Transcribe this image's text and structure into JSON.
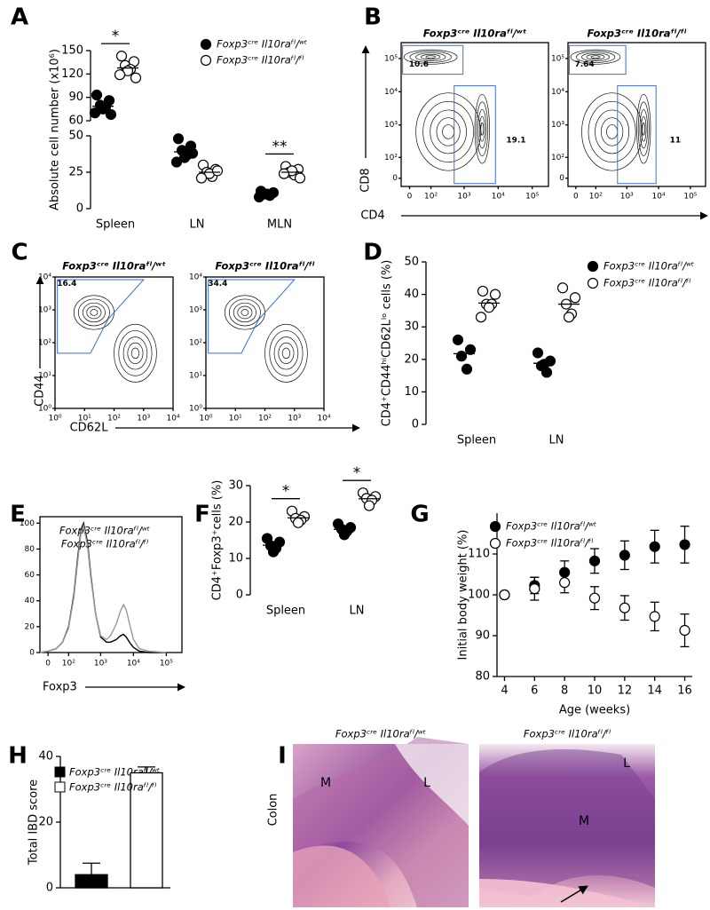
{
  "panel_labels": [
    "A",
    "B",
    "C",
    "D",
    "E",
    "F",
    "G",
    "H",
    "I"
  ],
  "chart_data": [
    {
      "type": "dot",
      "ylabel": "Absolute cell number (x10⁶)",
      "categories": [
        "Spleen",
        "LN",
        "MLN"
      ],
      "ylim": [
        0,
        150
      ],
      "ybreak": [
        50,
        60
      ],
      "yticks": [
        0,
        25,
        50,
        60,
        90,
        120,
        150
      ],
      "series": [
        {
          "name": "Foxp3ᶜʳᵉ Il10raᶠˡ/ʷᵗ",
          "color": "#000000",
          "values": [
            [
              93,
              86,
              80,
              78,
              75,
              70,
              68
            ],
            [
              48,
              43,
              40,
              37,
              35,
              32,
              38
            ],
            [
              12,
              11,
              10,
              9,
              10,
              8
            ]
          ]
        },
        {
          "name": "Foxp3ᶜʳᵉ Il10raᶠˡ/ᶠˡ",
          "color": "#ffffff",
          "values": [
            [
              143,
              136,
              131,
              126,
              124,
              119,
              115
            ],
            [
              30,
              27,
              25,
              22,
              24,
              21,
              26
            ],
            [
              29,
              27,
              25,
              23,
              26,
              24,
              21
            ]
          ]
        }
      ],
      "annotations": [
        "*",
        "**"
      ]
    },
    {
      "type": "contour",
      "xlabel": "CD4",
      "ylabel": "CD8",
      "xlim": [
        -30,
        300000
      ],
      "ylim": [
        -30,
        300000
      ],
      "xticks": [
        0,
        {
          "value": 100,
          "label": "10²"
        },
        {
          "value": 1000,
          "label": "10³"
        },
        {
          "value": 10000,
          "label": "10⁴"
        },
        {
          "value": 100000,
          "label": "10⁵"
        }
      ],
      "yticks": [
        0,
        {
          "value": 100,
          "label": "10²"
        },
        {
          "value": 1000,
          "label": "10³"
        },
        {
          "value": 10000,
          "label": "10⁴"
        },
        {
          "value": 100000,
          "label": "10⁵"
        }
      ],
      "plots": [
        {
          "title": "Foxp3ᶜʳᵉ Il10raᶠˡ/ʷᵗ",
          "gates": [
            10.6,
            19.1
          ]
        },
        {
          "title": "Foxp3ᶜʳᵉ Il10raᶠˡ/ᶠˡ",
          "gates": [
            7.64,
            11
          ]
        }
      ]
    },
    {
      "type": "contour",
      "xlabel": "CD62L",
      "ylabel": "CD44",
      "log": true,
      "xlim": [
        1,
        10000
      ],
      "ylim": [
        1,
        10000
      ],
      "xticks": [
        {
          "value": 1,
          "label": "10⁰"
        },
        {
          "value": 10,
          "label": "10¹"
        },
        {
          "value": 100,
          "label": "10²"
        },
        {
          "value": 1000,
          "label": "10³"
        },
        {
          "value": 10000,
          "label": "10⁴"
        }
      ],
      "yticks": [
        {
          "value": 1,
          "label": "10⁰"
        },
        {
          "value": 10,
          "label": "10¹"
        },
        {
          "value": 100,
          "label": "10²"
        },
        {
          "value": 1000,
          "label": "10³"
        },
        {
          "value": 10000,
          "label": "10⁴"
        }
      ],
      "plots": [
        {
          "title": "Foxp3ᶜʳᵉ Il10raᶠˡ/ʷᵗ",
          "gates": [
            16.4
          ]
        },
        {
          "title": "Foxp3ᶜʳᵉ Il10raᶠˡ/ᶠˡ",
          "gates": [
            34.4
          ]
        }
      ]
    },
    {
      "type": "dot",
      "ylabel": "CD4⁺CD44ʰⁱCD62Lˡᵒ cells (%)",
      "categories": [
        "Spleen",
        "LN"
      ],
      "ylim": [
        0,
        50
      ],
      "yticks": [
        0,
        10,
        20,
        30,
        40,
        50
      ],
      "series": [
        {
          "name": "Foxp3ᶜʳᵉ Il10raᶠˡ/ʷᵗ",
          "color": "#000000",
          "values": [
            [
              26,
              23,
              21,
              17
            ],
            [
              22,
              19.5,
              18,
              16,
              18.5
            ]
          ]
        },
        {
          "name": "Foxp3ᶜʳᵉ Il10raᶠˡ/ᶠˡ",
          "color": "#ffffff",
          "values": [
            [
              41,
              40,
              37,
              37,
              36,
              33
            ],
            [
              42,
              39,
              37,
              34,
              33
            ]
          ]
        }
      ]
    },
    {
      "type": "line",
      "xlabel": "Foxp3",
      "xlim": [
        -30,
        300000
      ],
      "ylim": [
        0,
        105
      ],
      "xticks": [
        0,
        {
          "value": 100,
          "label": "10²"
        },
        {
          "value": 1000,
          "label": "10³"
        },
        {
          "value": 10000,
          "label": "10⁴"
        },
        {
          "value": 100000,
          "label": "10⁵"
        }
      ],
      "yticks": [
        0,
        20,
        40,
        60,
        80,
        100
      ],
      "x": [
        -30,
        0,
        30,
        60,
        100,
        150,
        200,
        250,
        300,
        400,
        500,
        700,
        1000,
        1500,
        2000,
        3000,
        4000,
        5000,
        6000,
        8000,
        10000,
        15000,
        30000,
        100000
      ],
      "series": [
        {
          "name": "Foxp3ᶜʳᵉ Il10raᶠˡ/ʷᵗ",
          "color": "#000000",
          "values": [
            0,
            1,
            3,
            8,
            20,
            45,
            75,
            95,
            100,
            85,
            60,
            30,
            12,
            8,
            8,
            10,
            13,
            14,
            12,
            7,
            4,
            1,
            0,
            0
          ]
        },
        {
          "name": "Foxp3ᶜʳᵉ Il10raᶠˡ/ᶠˡ",
          "color": "#9a9a9a",
          "values": [
            0,
            1,
            3,
            8,
            19,
            43,
            72,
            93,
            98,
            82,
            58,
            30,
            13,
            10,
            13,
            22,
            32,
            37,
            33,
            20,
            10,
            3,
            1,
            0
          ]
        }
      ]
    },
    {
      "type": "dot",
      "ylabel": "CD4⁺Foxp3⁺cells (%)",
      "categories": [
        "Spleen",
        "LN"
      ],
      "ylim": [
        0,
        30
      ],
      "yticks": [
        0,
        10,
        20,
        30
      ],
      "series": [
        {
          "color": "#000000",
          "values": [
            [
              15.5,
              14.5,
              13.5,
              12.8,
              11.8
            ],
            [
              19.5,
              18.5,
              18,
              17.5,
              16.5
            ]
          ]
        },
        {
          "color": "#ffffff",
          "values": [
            [
              23,
              21.5,
              21,
              20.5,
              19.8
            ],
            [
              28,
              27,
              26.5,
              26,
              24.5
            ]
          ]
        }
      ],
      "annotations": [
        "*",
        "*"
      ]
    },
    {
      "type": "scatter",
      "ylabel": "Initial body weight (%)",
      "xlabel": "Age (weeks)",
      "x": [
        4,
        6,
        8,
        10,
        12,
        14,
        16
      ],
      "xlim": [
        3.5,
        16.5
      ],
      "xticks": [
        4,
        6,
        8,
        10,
        12,
        14,
        16
      ],
      "ylim": [
        80,
        120
      ],
      "yticks": [
        80,
        90,
        100,
        110
      ],
      "series": [
        {
          "name": "Foxp3ᶜʳᵉ Il10raᶠˡ/ʷᵗ",
          "color": "#000000",
          "values": [
            100,
            102.3,
            105.5,
            108.3,
            109.7,
            111.8,
            112.3
          ],
          "errors": [
            0,
            2,
            2.8,
            3,
            3.5,
            4,
            4.5
          ]
        },
        {
          "name": "Foxp3ᶜʳᵉ Il10raᶠˡ/ᶠˡ",
          "color": "#ffffff",
          "values": [
            100,
            101.5,
            103,
            99.2,
            96.8,
            94.7,
            91.3
          ],
          "errors": [
            0,
            2.8,
            2.5,
            2.8,
            3,
            3.5,
            4
          ]
        }
      ]
    },
    {
      "type": "bar",
      "ylabel": "Total IBD score",
      "categories": [
        null,
        null
      ],
      "values": [
        4,
        35
      ],
      "errors": [
        3.5,
        1.8
      ],
      "colors": [
        "#000000",
        "#ffffff"
      ],
      "labels": [
        "Foxp3ᶜʳᵉ Il10raᶠˡ/ʷᵗ",
        "Foxp3ᶜʳᵉ Il10raᶠˡ/ᶠˡ"
      ],
      "ylim": [
        0,
        40
      ],
      "yticks": [
        0,
        20,
        40
      ]
    },
    {
      "type": "image",
      "ylabel": "Colon",
      "images": [
        {
          "title": "Foxp3ᶜʳᵉ Il10raᶠˡ/ʷᵗ",
          "labels": [
            "M",
            "L"
          ]
        },
        {
          "title": "Foxp3ᶜʳᵉ Il10raᶠˡ/ᶠˡ",
          "labels": [
            "M",
            "L"
          ]
        }
      ]
    }
  ]
}
